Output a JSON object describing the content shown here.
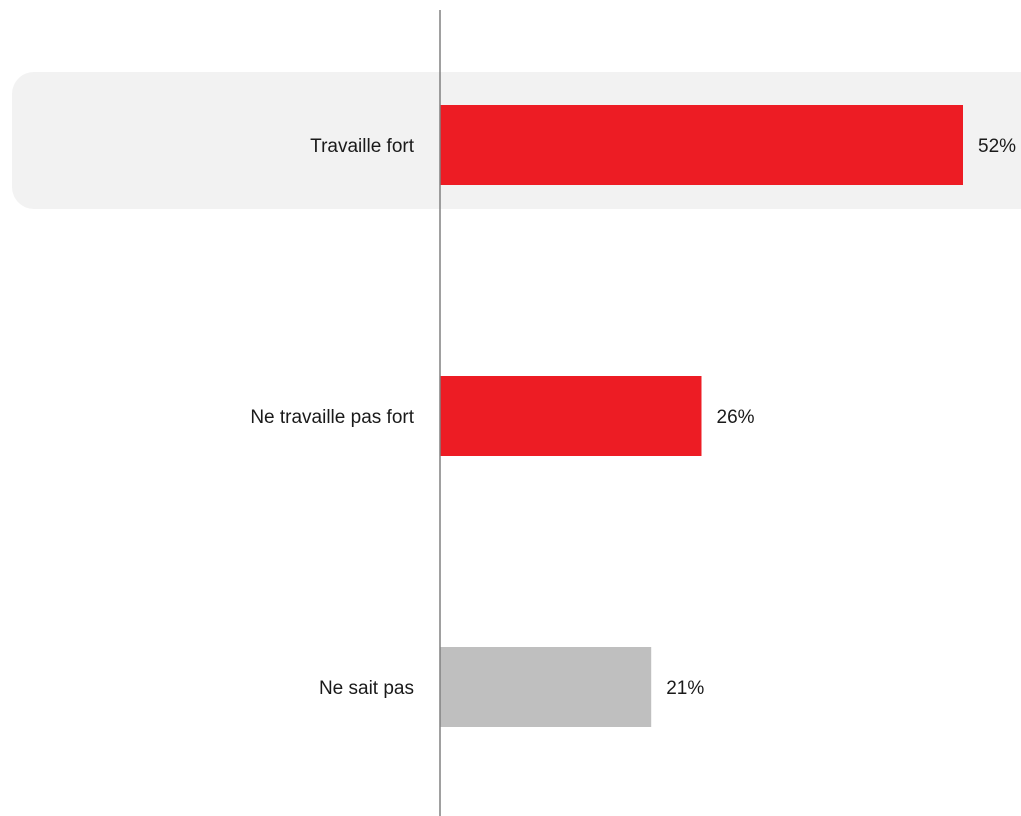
{
  "chart_data": {
    "type": "bar",
    "orientation": "horizontal",
    "categories": [
      "Travaille fort",
      "Ne travaille pas fort",
      "Ne sait pas"
    ],
    "values": [
      52,
      26,
      21
    ],
    "value_labels": [
      "52%",
      "26%",
      "21%"
    ],
    "unit": "%",
    "title": "",
    "xlabel": "",
    "ylabel": "",
    "xlim": [
      0,
      52
    ],
    "grid": false,
    "legend": "none",
    "highlighted_category": "Travaille fort",
    "colors": {
      "bars": [
        "#ED1C24",
        "#ED1C24",
        "#BFBFBF"
      ],
      "highlight_band": "#F2F2F2",
      "axis": "#808080",
      "text": "#1A1A1A"
    }
  }
}
